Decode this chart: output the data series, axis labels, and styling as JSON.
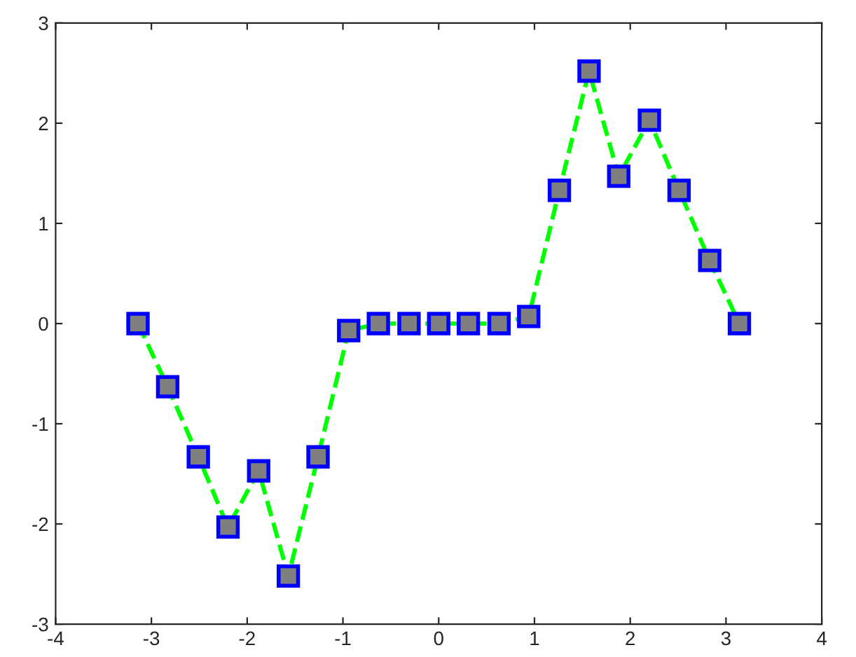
{
  "chart_data": {
    "type": "line",
    "x": [
      -3.14,
      -2.83,
      -2.51,
      -2.2,
      -1.88,
      -1.57,
      -1.26,
      -0.94,
      -0.63,
      -0.31,
      0,
      0.31,
      0.63,
      0.94,
      1.26,
      1.57,
      1.88,
      2.2,
      2.51,
      2.83,
      3.14
    ],
    "series": [
      {
        "color": "#00ff00",
        "values": [
          0,
          -0.63,
          -1.33,
          -2.03,
          -1.47,
          -2.52,
          -1.33,
          -0.07,
          0,
          0,
          0,
          0,
          0,
          0.07,
          1.33,
          2.52,
          1.47,
          2.03,
          1.33,
          0.63,
          0
        ]
      }
    ],
    "xlim": [
      -4,
      4
    ],
    "xticks": [
      -4,
      -3,
      -2,
      -1,
      0,
      1,
      2,
      3,
      4
    ],
    "ylim": [
      -3,
      3
    ],
    "yticks": [
      -3,
      -2,
      -1,
      0,
      1,
      2,
      3
    ],
    "grid": false,
    "legend": false,
    "marker": "square",
    "line_style": "dashed"
  }
}
